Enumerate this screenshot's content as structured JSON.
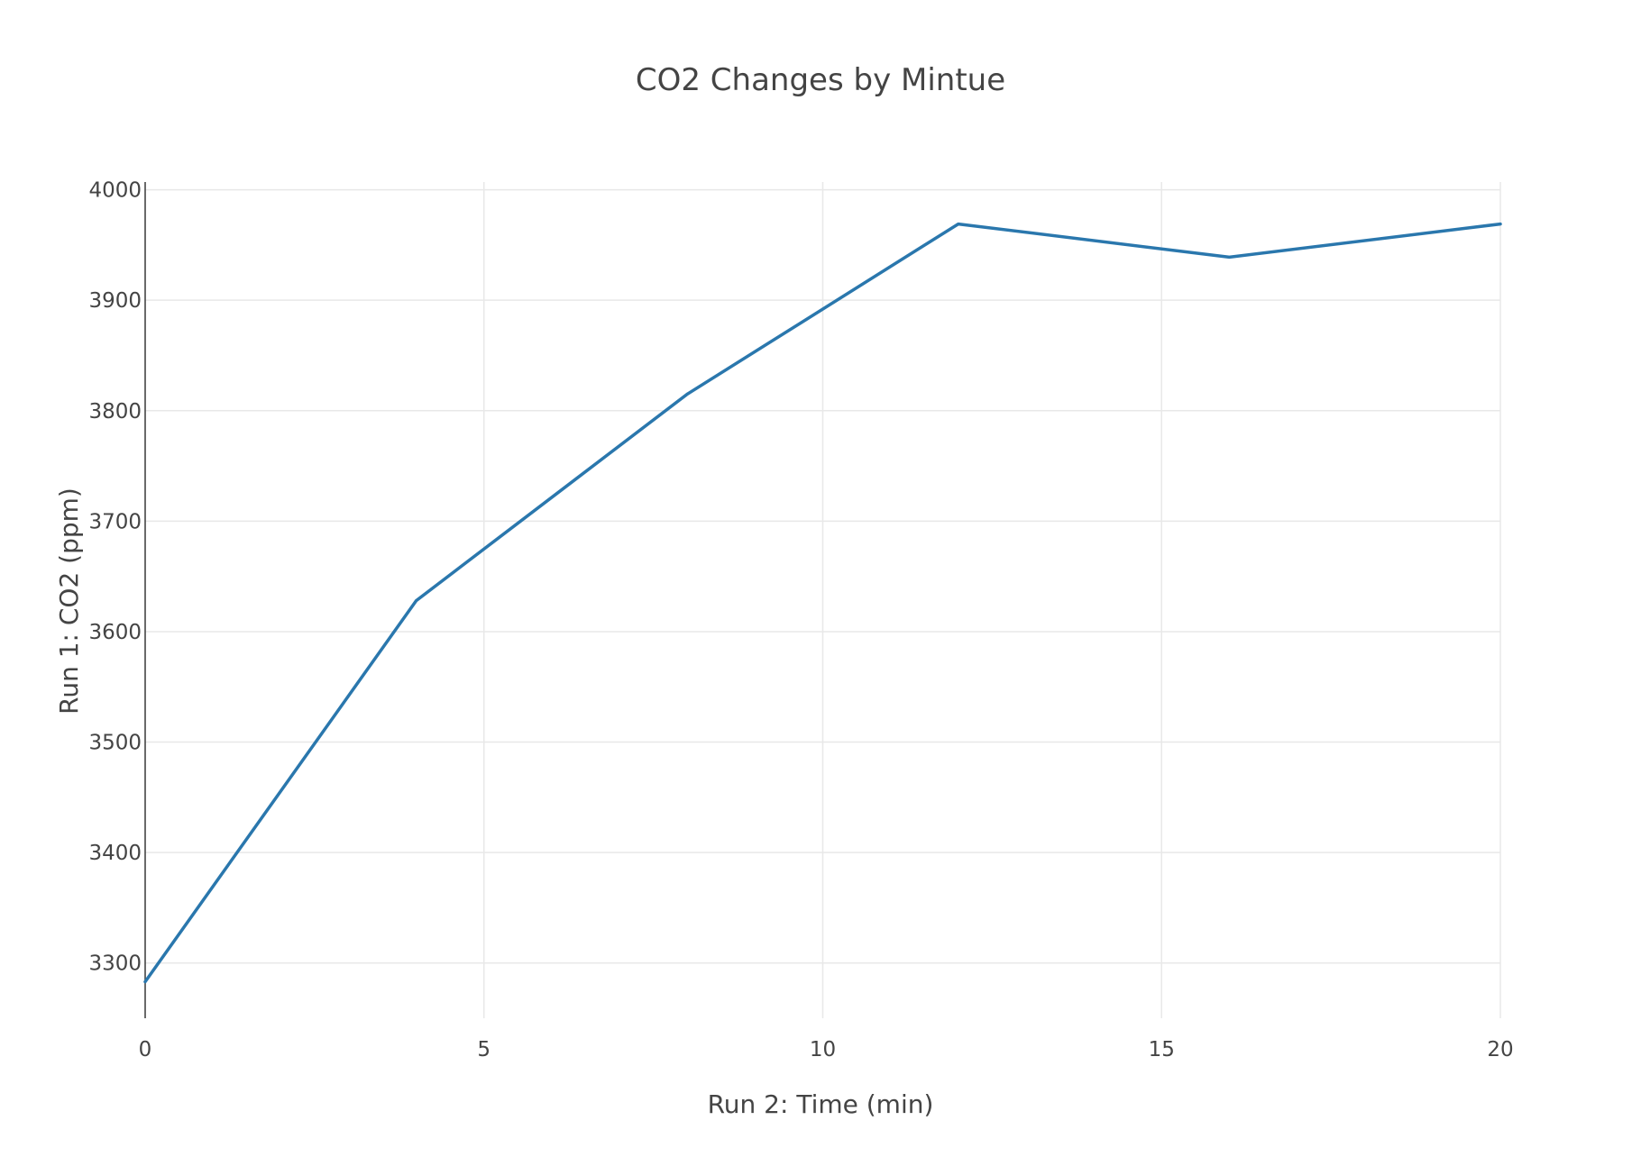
{
  "chart_data": {
    "type": "line",
    "title": "CO2 Changes by Mintue",
    "xlabel": "Run 2: Time (min)",
    "ylabel": "Run 1: CO2 (ppm)",
    "x": [
      0,
      4,
      8,
      12,
      16,
      20
    ],
    "series": [
      {
        "values": [
          3283,
          3628,
          3815,
          3969,
          3939,
          3969
        ]
      }
    ],
    "xlim": [
      0,
      20
    ],
    "ylim": [
      3250,
      4007
    ],
    "xticks": [
      0,
      5,
      10,
      15,
      20
    ],
    "xtick_labels": [
      "0",
      "5",
      "10",
      "15",
      "20"
    ],
    "yticks": [
      3300,
      3400,
      3500,
      3600,
      3700,
      3800,
      3900,
      4000
    ],
    "ytick_labels": [
      "3300",
      "3400",
      "3500",
      "3600",
      "3700",
      "3800",
      "3900",
      "4000"
    ],
    "grid": true,
    "legend": "none",
    "colors": {
      "line": "#2a77ad"
    }
  }
}
